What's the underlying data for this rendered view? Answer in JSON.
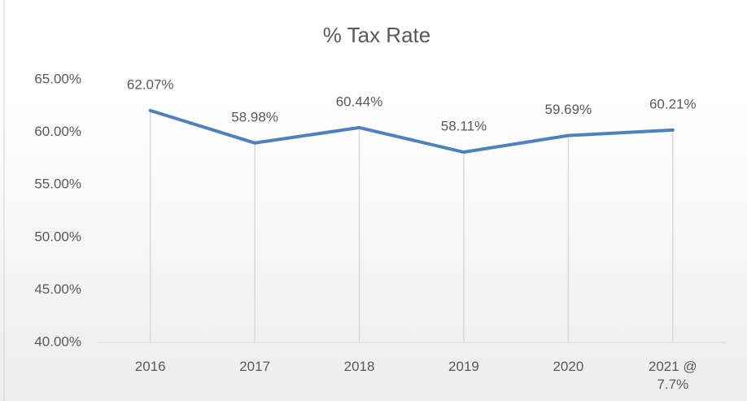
{
  "chart_data": {
    "type": "line",
    "title": "% Tax Rate",
    "categories": [
      "2016",
      "2017",
      "2018",
      "2019",
      "2020",
      "2021 @ 7.7%"
    ],
    "series": [
      {
        "name": "% Tax Rate",
        "color": "#4f81bd",
        "values": [
          62.07,
          58.98,
          60.44,
          58.11,
          59.69,
          60.21
        ],
        "value_labels": [
          "62.07%",
          "58.98%",
          "60.44%",
          "58.11%",
          "59.69%",
          "60.21%"
        ]
      }
    ],
    "ylim": [
      40,
      65
    ],
    "yticks": [
      {
        "value": 40,
        "label": "40.00%"
      },
      {
        "value": 45,
        "label": "45.00%"
      },
      {
        "value": 50,
        "label": "50.00%"
      },
      {
        "value": 55,
        "label": "55.00%"
      },
      {
        "value": 60,
        "label": "60.00%"
      },
      {
        "value": 65,
        "label": "65.00%"
      }
    ],
    "grid": false,
    "drop_lines": true
  }
}
